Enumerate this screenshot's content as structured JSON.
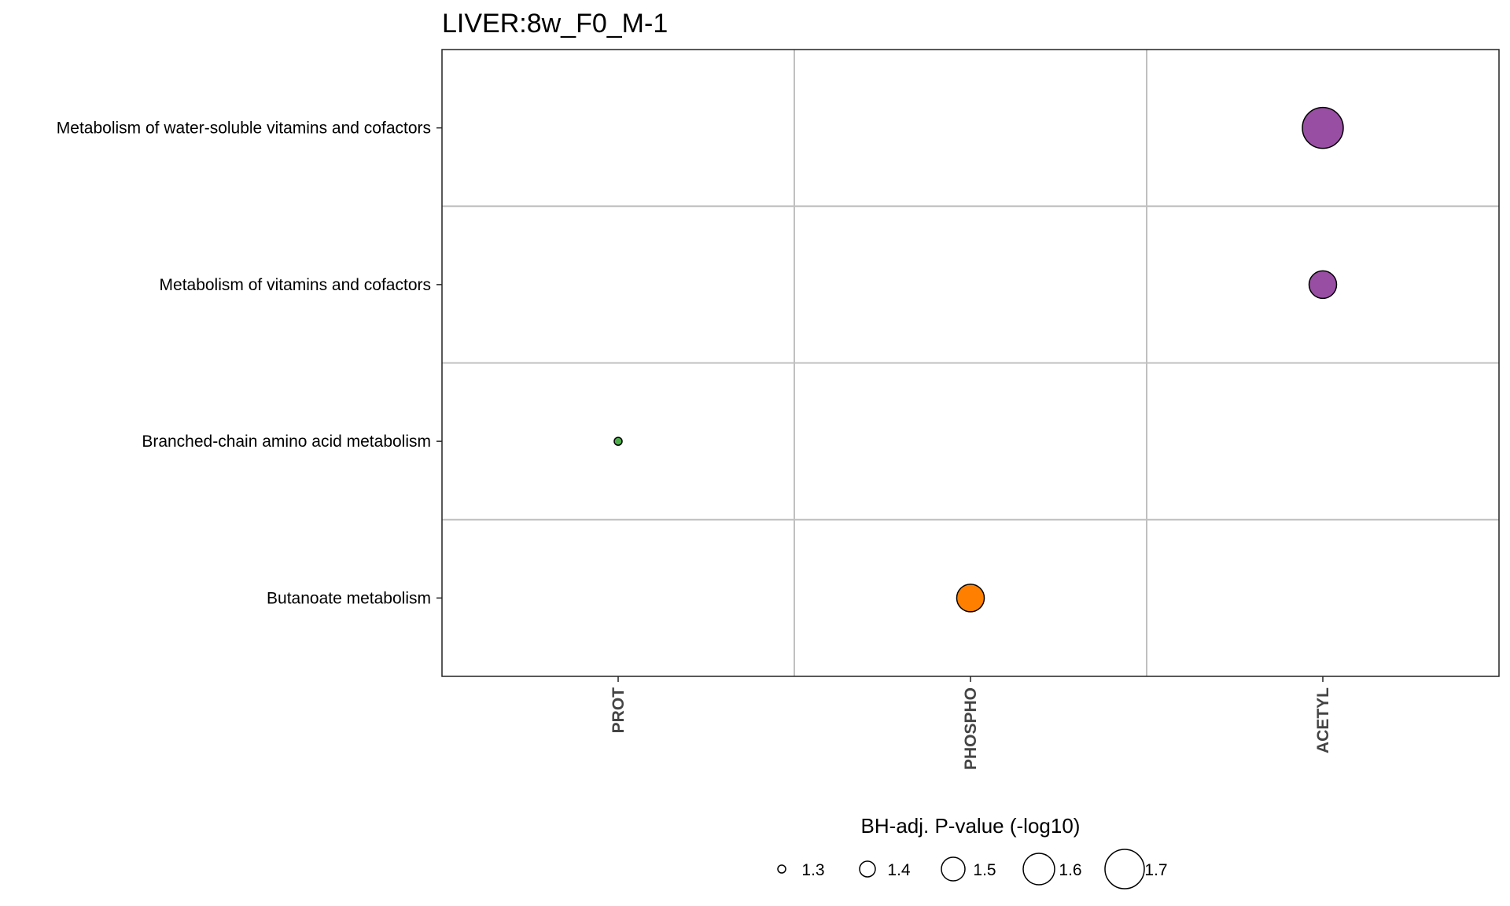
{
  "chart_data": {
    "type": "scatter",
    "title": "LIVER:8w_F0_M-1",
    "x_categories": [
      "PROT",
      "PHOSPHO",
      "ACETYL"
    ],
    "y_categories": [
      "Metabolism of water-soluble vitamins and cofactors",
      "Metabolism of vitamins and cofactors",
      "Branched-chain amino acid metabolism",
      "Butanoate metabolism"
    ],
    "points": [
      {
        "x": "ACETYL",
        "y": "Metabolism of water-soluble vitamins and cofactors",
        "size_value": 1.72,
        "color": "#984ea3"
      },
      {
        "x": "ACETYL",
        "y": "Metabolism of vitamins and cofactors",
        "size_value": 1.55,
        "color": "#984ea3"
      },
      {
        "x": "PROT",
        "y": "Branched-chain amino acid metabolism",
        "size_value": 1.3,
        "color": "#4daf4a"
      },
      {
        "x": "PHOSPHO",
        "y": "Butanoate metabolism",
        "size_value": 1.55,
        "color": "#ff7f00"
      }
    ],
    "legend": {
      "title": "BH-adj. P-value (-log10)",
      "position": "bottom",
      "values": [
        1.3,
        1.4,
        1.5,
        1.6,
        1.7
      ],
      "labels": [
        "1.3",
        "1.4",
        "1.5",
        "1.6",
        "1.7"
      ]
    },
    "grid": true
  }
}
